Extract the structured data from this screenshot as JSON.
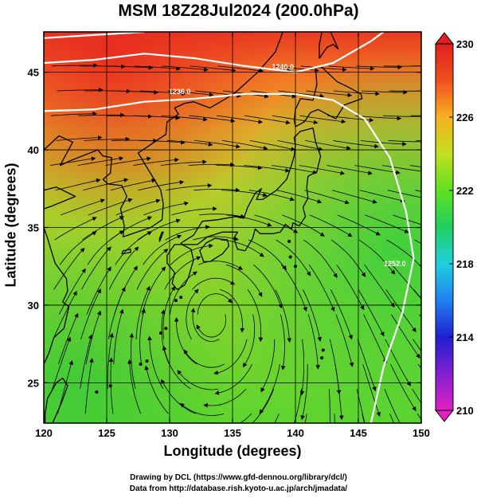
{
  "title": "MSM 18Z28Jul2024 (200.0hPa)",
  "axes": {
    "xlabel": "Longitude (degrees)",
    "ylabel": "Latitude  (degrees)",
    "x_ticks": [
      "120",
      "125",
      "130",
      "135",
      "140",
      "145",
      "150"
    ],
    "y_ticks": [
      "25",
      "30",
      "35",
      "40",
      "45"
    ],
    "xlim": [
      120,
      150
    ],
    "ylim": [
      22.4,
      47.6
    ]
  },
  "colorbar": {
    "min": 210,
    "max": 230,
    "tick_labels": [
      "230",
      "226",
      "222",
      "218",
      "214",
      "210"
    ],
    "colors": [
      "#e020c0",
      "#8020d0",
      "#2020d0",
      "#2080f0",
      "#20d0e0",
      "#20d060",
      "#60e020",
      "#c0e020",
      "#f8b020",
      "#f05020",
      "#e02020"
    ]
  },
  "contour_labels": [
    {
      "text": "1240.0",
      "lon": 139.0,
      "lat": 45.2
    },
    {
      "text": "1236.0",
      "lon": 130.8,
      "lat": 43.6
    },
    {
      "text": "1252.0",
      "lon": 147.9,
      "lat": 32.5
    }
  ],
  "credits": {
    "line1": "Drawing by DCL (https://www.gfd-dennou.org/library/dcl/)",
    "line2": "Data from http://database.rish.kyoto-u.ac.jp/arch/jmadata/"
  },
  "map_style": {
    "coast_color": "#000000",
    "grid_color": "#000000",
    "contour_color": "#ffffff",
    "stream_color": "#000000"
  }
}
